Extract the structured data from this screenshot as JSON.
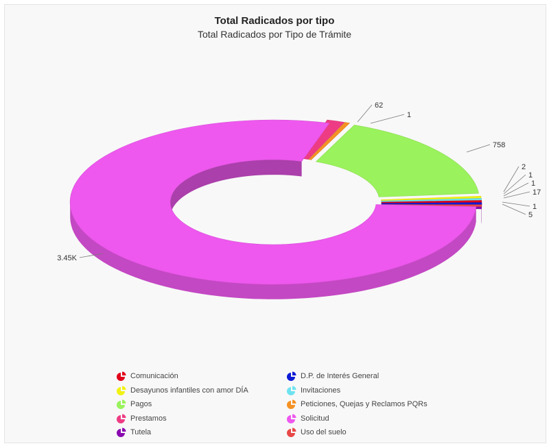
{
  "chart_data": {
    "type": "pie",
    "style": "3d-donut",
    "title": "Total Radicados por tipo",
    "subtitle": "Total Radicados por Tipo de Trámite",
    "legend_position": "bottom",
    "slices": [
      {
        "name": "Comunicación",
        "value": 1,
        "color": "#e2001a"
      },
      {
        "name": "D.P. de Interés General",
        "value": 1,
        "color": "#0d1bd6"
      },
      {
        "name": "Desayunos infantiles con amor DÍA",
        "value": 2,
        "color": "#f2f213"
      },
      {
        "name": "Invitaciones",
        "value": 1,
        "color": "#6ee3ef"
      },
      {
        "name": "Pagos",
        "value": 758,
        "color": "#9af25c"
      },
      {
        "name": "Peticiones, Quejas y Reclamos PQRs",
        "value": 17,
        "color": "#f59224"
      },
      {
        "name": "Prestamos",
        "value": 62,
        "color": "#ee3c84"
      },
      {
        "name": "Solicitud",
        "value": 3450,
        "color": "#ee58ee"
      },
      {
        "name": "Tutela",
        "value": 5,
        "color": "#8a0ab0"
      },
      {
        "name": "Uso del suelo",
        "value": 1,
        "color": "#e84848"
      }
    ],
    "data_labels": [
      "62",
      "1",
      "758",
      "2",
      "1",
      "1",
      "17",
      "1",
      "5",
      "3.45K"
    ]
  }
}
